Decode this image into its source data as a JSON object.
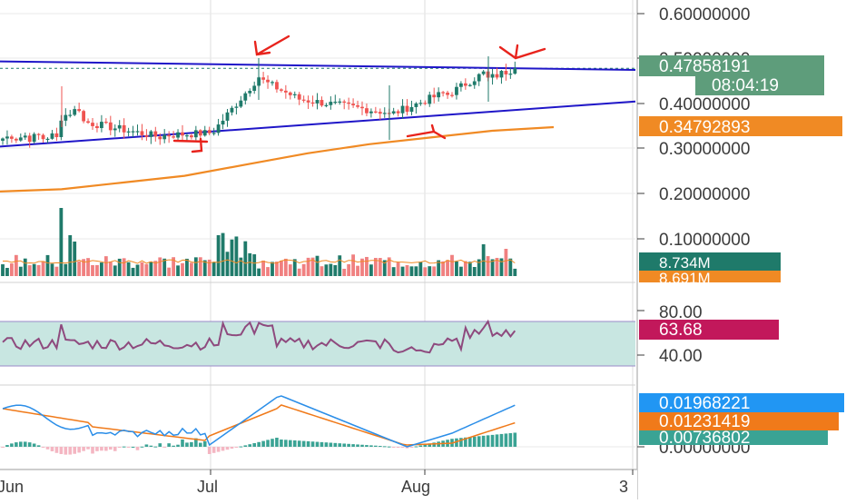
{
  "colors": {
    "up": "#1f7a6a",
    "down": "#ef5350",
    "vol_up": "#1f7a6a",
    "vol_down": "#f08080",
    "wedge": "#1f16c8",
    "ma": "#f08a24",
    "rsi_line": "#8e4a7e",
    "rsi_band": "#c8e6e1",
    "macd_line": "#2b8ee8",
    "signal_line": "#f07a1a",
    "annotation": "#e8231c",
    "grid": "#e8e8e8",
    "axis_text": "#3b3b3b"
  },
  "price_axis": {
    "ticks": [
      "0.60000000",
      "0.50000000",
      "0.40000000",
      "0.30000000",
      "0.20000000",
      "0.10000000"
    ]
  },
  "badges": {
    "last_price": "0.47858191",
    "countdown": "08:04:19",
    "ma_value": "0.34792893",
    "volume": "8.734M",
    "volume_ma": "8.691M",
    "rsi": "63.68",
    "macd": "0.01968221",
    "signal": "0.01231419",
    "histogram": "0.00736802"
  },
  "rsi_axis": {
    "ticks": [
      "80.00",
      "40.00"
    ]
  },
  "macd_axis": {
    "ticks": [
      "0.00000000"
    ]
  },
  "time_axis": {
    "labels": [
      "Jun",
      "Jul",
      "Aug",
      "3"
    ]
  },
  "chart_data": {
    "type": "candlestick",
    "title": "",
    "price_range": [
      0.0,
      0.64
    ],
    "candles": [],
    "volume": [],
    "ma200": {
      "values": [
        0.205,
        0.21,
        0.225,
        0.24,
        0.265,
        0.29,
        0.31,
        0.325,
        0.34,
        0.348
      ]
    },
    "trendlines": [
      {
        "name": "upper",
        "from": 0.494,
        "to": 0.475
      },
      {
        "name": "lower",
        "from": 0.305,
        "to": 0.405
      }
    ],
    "rsi": {
      "range": [
        30,
        84
      ],
      "band": [
        30,
        70
      ]
    },
    "macd": {}
  }
}
